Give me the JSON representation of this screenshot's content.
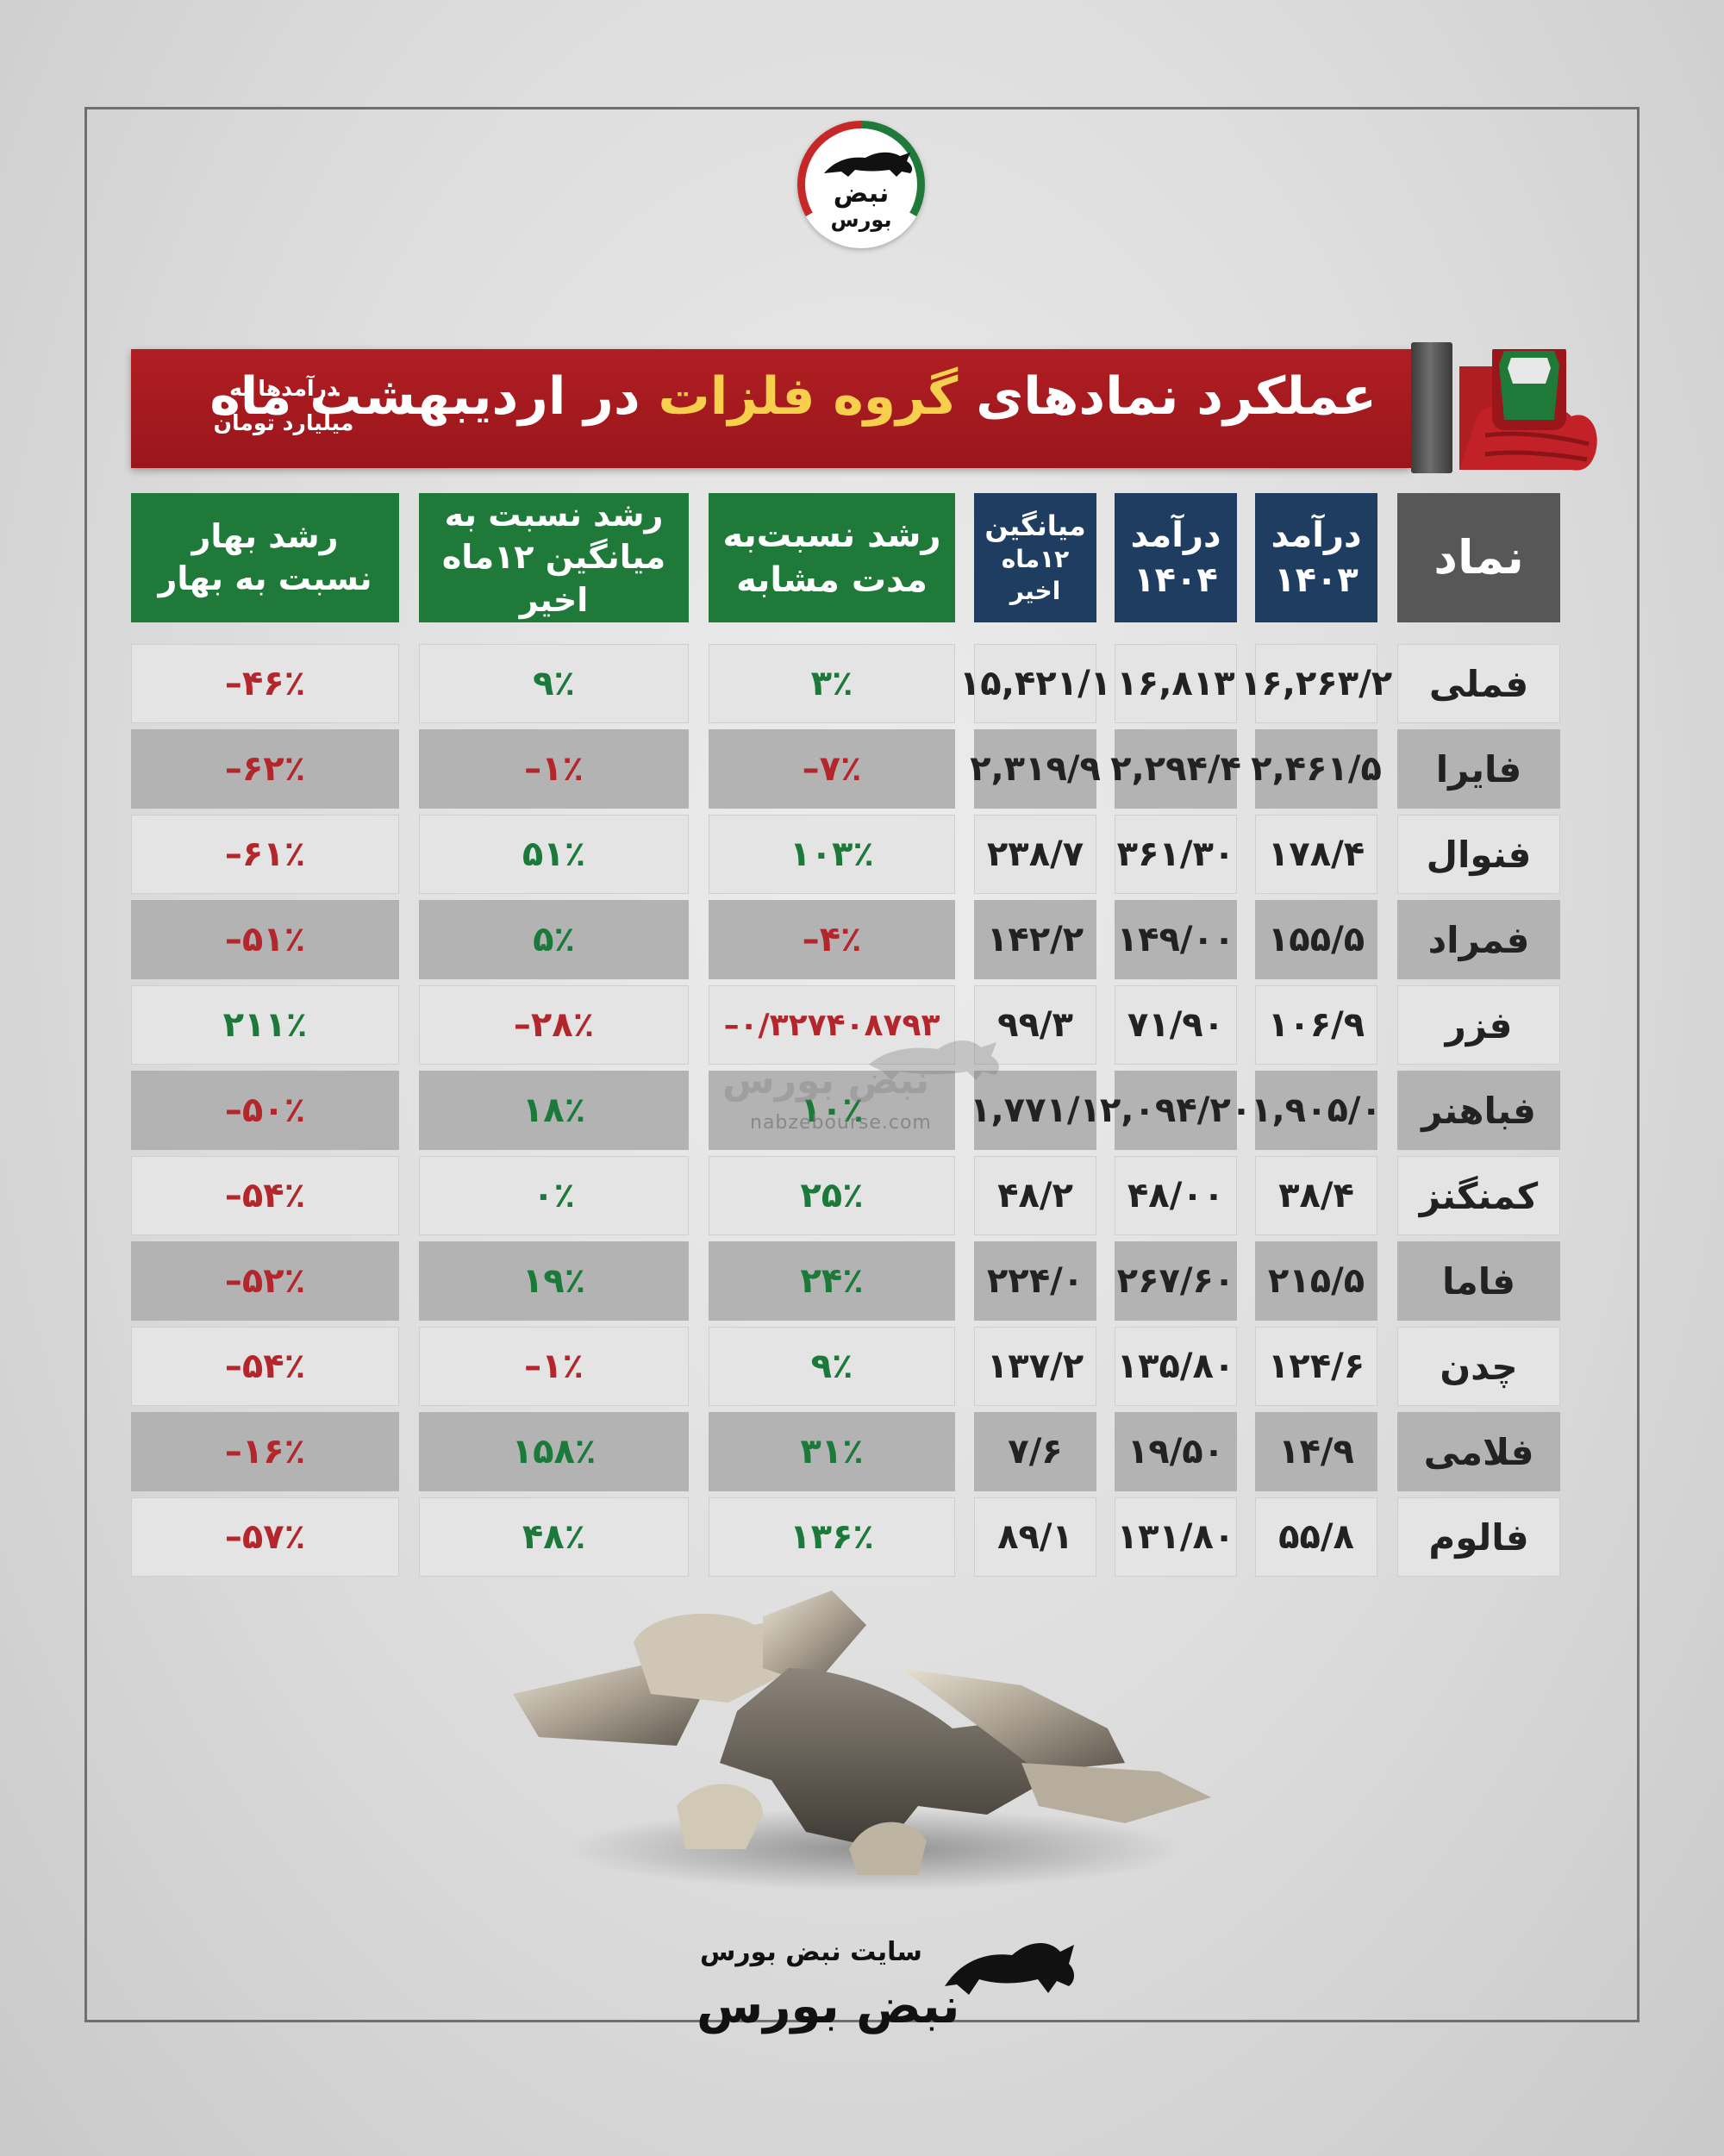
{
  "logo": {
    "icon": "bull-icon",
    "line1": "نبض",
    "line2": "بورس",
    "colors": [
      "#1f7a3a",
      "#ffffff",
      "#c62828"
    ]
  },
  "banner": {
    "title_part1": "عملکرد نمادهای",
    "title_highlight": "گروه فلزات",
    "title_part2": "در اردیبهشت ماه",
    "note_line1": "درآمدها به",
    "note_line2": "میلیارد تومان",
    "bg_color": "#a3181d",
    "highlight_color": "#f6d04d"
  },
  "table": {
    "headers": {
      "symbol": "نماد",
      "rev1403_l1": "درآمد",
      "rev1403_l2": "۱۴۰۳",
      "rev1404_l1": "درآمد",
      "rev1404_l2": "۱۴۰۴",
      "avg_l1": "میانگین",
      "avg_l2": "۱۲ماه اخیر",
      "g_same_l1": "رشد نسبت‌به",
      "g_same_l2": "مدت مشابه",
      "g_avg_l1": "رشد نسبت به",
      "g_avg_l2": "میانگین ۱۲ماه اخیر",
      "g_spring_l1": "رشد بهار",
      "g_spring_l2": "نسبت به بهار"
    },
    "rows": [
      {
        "symbol": "فملی",
        "rev1403": "۱۶,۲۶۳/۲",
        "rev1404": "۱۶,۸۱۳",
        "avg": "۱۵,۴۲۱/۱",
        "g_same": "۳٪",
        "g_avg": "۹٪",
        "g_spring": "–۴۶٪"
      },
      {
        "symbol": "فایرا",
        "rev1403": "۲,۴۶۱/۵",
        "rev1404": "۲,۲۹۴/۴",
        "avg": "۲,۳۱۹/۹",
        "g_same": "–۷٪",
        "g_avg": "–۱٪",
        "g_spring": "–۶۲٪"
      },
      {
        "symbol": "فنوال",
        "rev1403": "۱۷۸/۴",
        "rev1404": "۳۶۱/۳۰",
        "avg": "۲۳۸/۷",
        "g_same": "۱۰۳٪",
        "g_avg": "۵۱٪",
        "g_spring": "–۶۱٪"
      },
      {
        "symbol": "فمراد",
        "rev1403": "۱۵۵/۵",
        "rev1404": "۱۴۹/۰۰",
        "avg": "۱۴۲/۲",
        "g_same": "–۴٪",
        "g_avg": "۵٪",
        "g_spring": "–۵۱٪"
      },
      {
        "symbol": "فزر",
        "rev1403": "۱۰۶/۹",
        "rev1404": "۷۱/۹۰",
        "avg": "۹۹/۳",
        "g_same": "–۰/۳۲۷۴۰۸۷۹۳",
        "g_avg": "–۲۸٪",
        "g_spring": "۲۱۱٪"
      },
      {
        "symbol": "فباهنر",
        "rev1403": "۱,۹۰۵/۰",
        "rev1404": "۲,۰۹۴/۲۰",
        "avg": "۱,۷۷۱/۱",
        "g_same": "۱۰٪",
        "g_avg": "۱۸٪",
        "g_spring": "–۵۰٪"
      },
      {
        "symbol": "کمنگنز",
        "rev1403": "۳۸/۴",
        "rev1404": "۴۸/۰۰",
        "avg": "۴۸/۲",
        "g_same": "۲۵٪",
        "g_avg": "۰٪",
        "g_spring": "–۵۴٪"
      },
      {
        "symbol": "فاما",
        "rev1403": "۲۱۵/۵",
        "rev1404": "۲۶۷/۶۰",
        "avg": "۲۲۴/۰",
        "g_same": "۲۴٪",
        "g_avg": "۱۹٪",
        "g_spring": "–۵۲٪"
      },
      {
        "symbol": "چدن",
        "rev1403": "۱۲۴/۶",
        "rev1404": "۱۳۵/۸۰",
        "avg": "۱۳۷/۲",
        "g_same": "۹٪",
        "g_avg": "–۱٪",
        "g_spring": "–۵۴٪"
      },
      {
        "symbol": "فلامی",
        "rev1403": "۱۴/۹",
        "rev1404": "۱۹/۵۰",
        "avg": "۷/۶",
        "g_same": "۳۱٪",
        "g_avg": "۱۵۸٪",
        "g_spring": "–۱۶٪"
      },
      {
        "symbol": "فالوم",
        "rev1403": "۵۵/۸",
        "rev1404": "۱۳۱/۸۰",
        "avg": "۸۹/۱",
        "g_same": "۱۳۶٪",
        "g_avg": "۴۸٪",
        "g_spring": "–۵۷٪"
      }
    ],
    "colors": {
      "header_blue": "#1f3c61",
      "header_green": "#1f7a3a",
      "header_gray": "#575757",
      "positive": "#1b7a3a",
      "negative": "#b3262c"
    }
  },
  "watermark": {
    "icon": "bull-logo-watermark",
    "text": "نبض بورس",
    "url": "nabzebourse.com"
  },
  "footer": {
    "site_label": "سایت نبض بورس",
    "brand": "نبض بورس",
    "icon": "bull-icon"
  }
}
